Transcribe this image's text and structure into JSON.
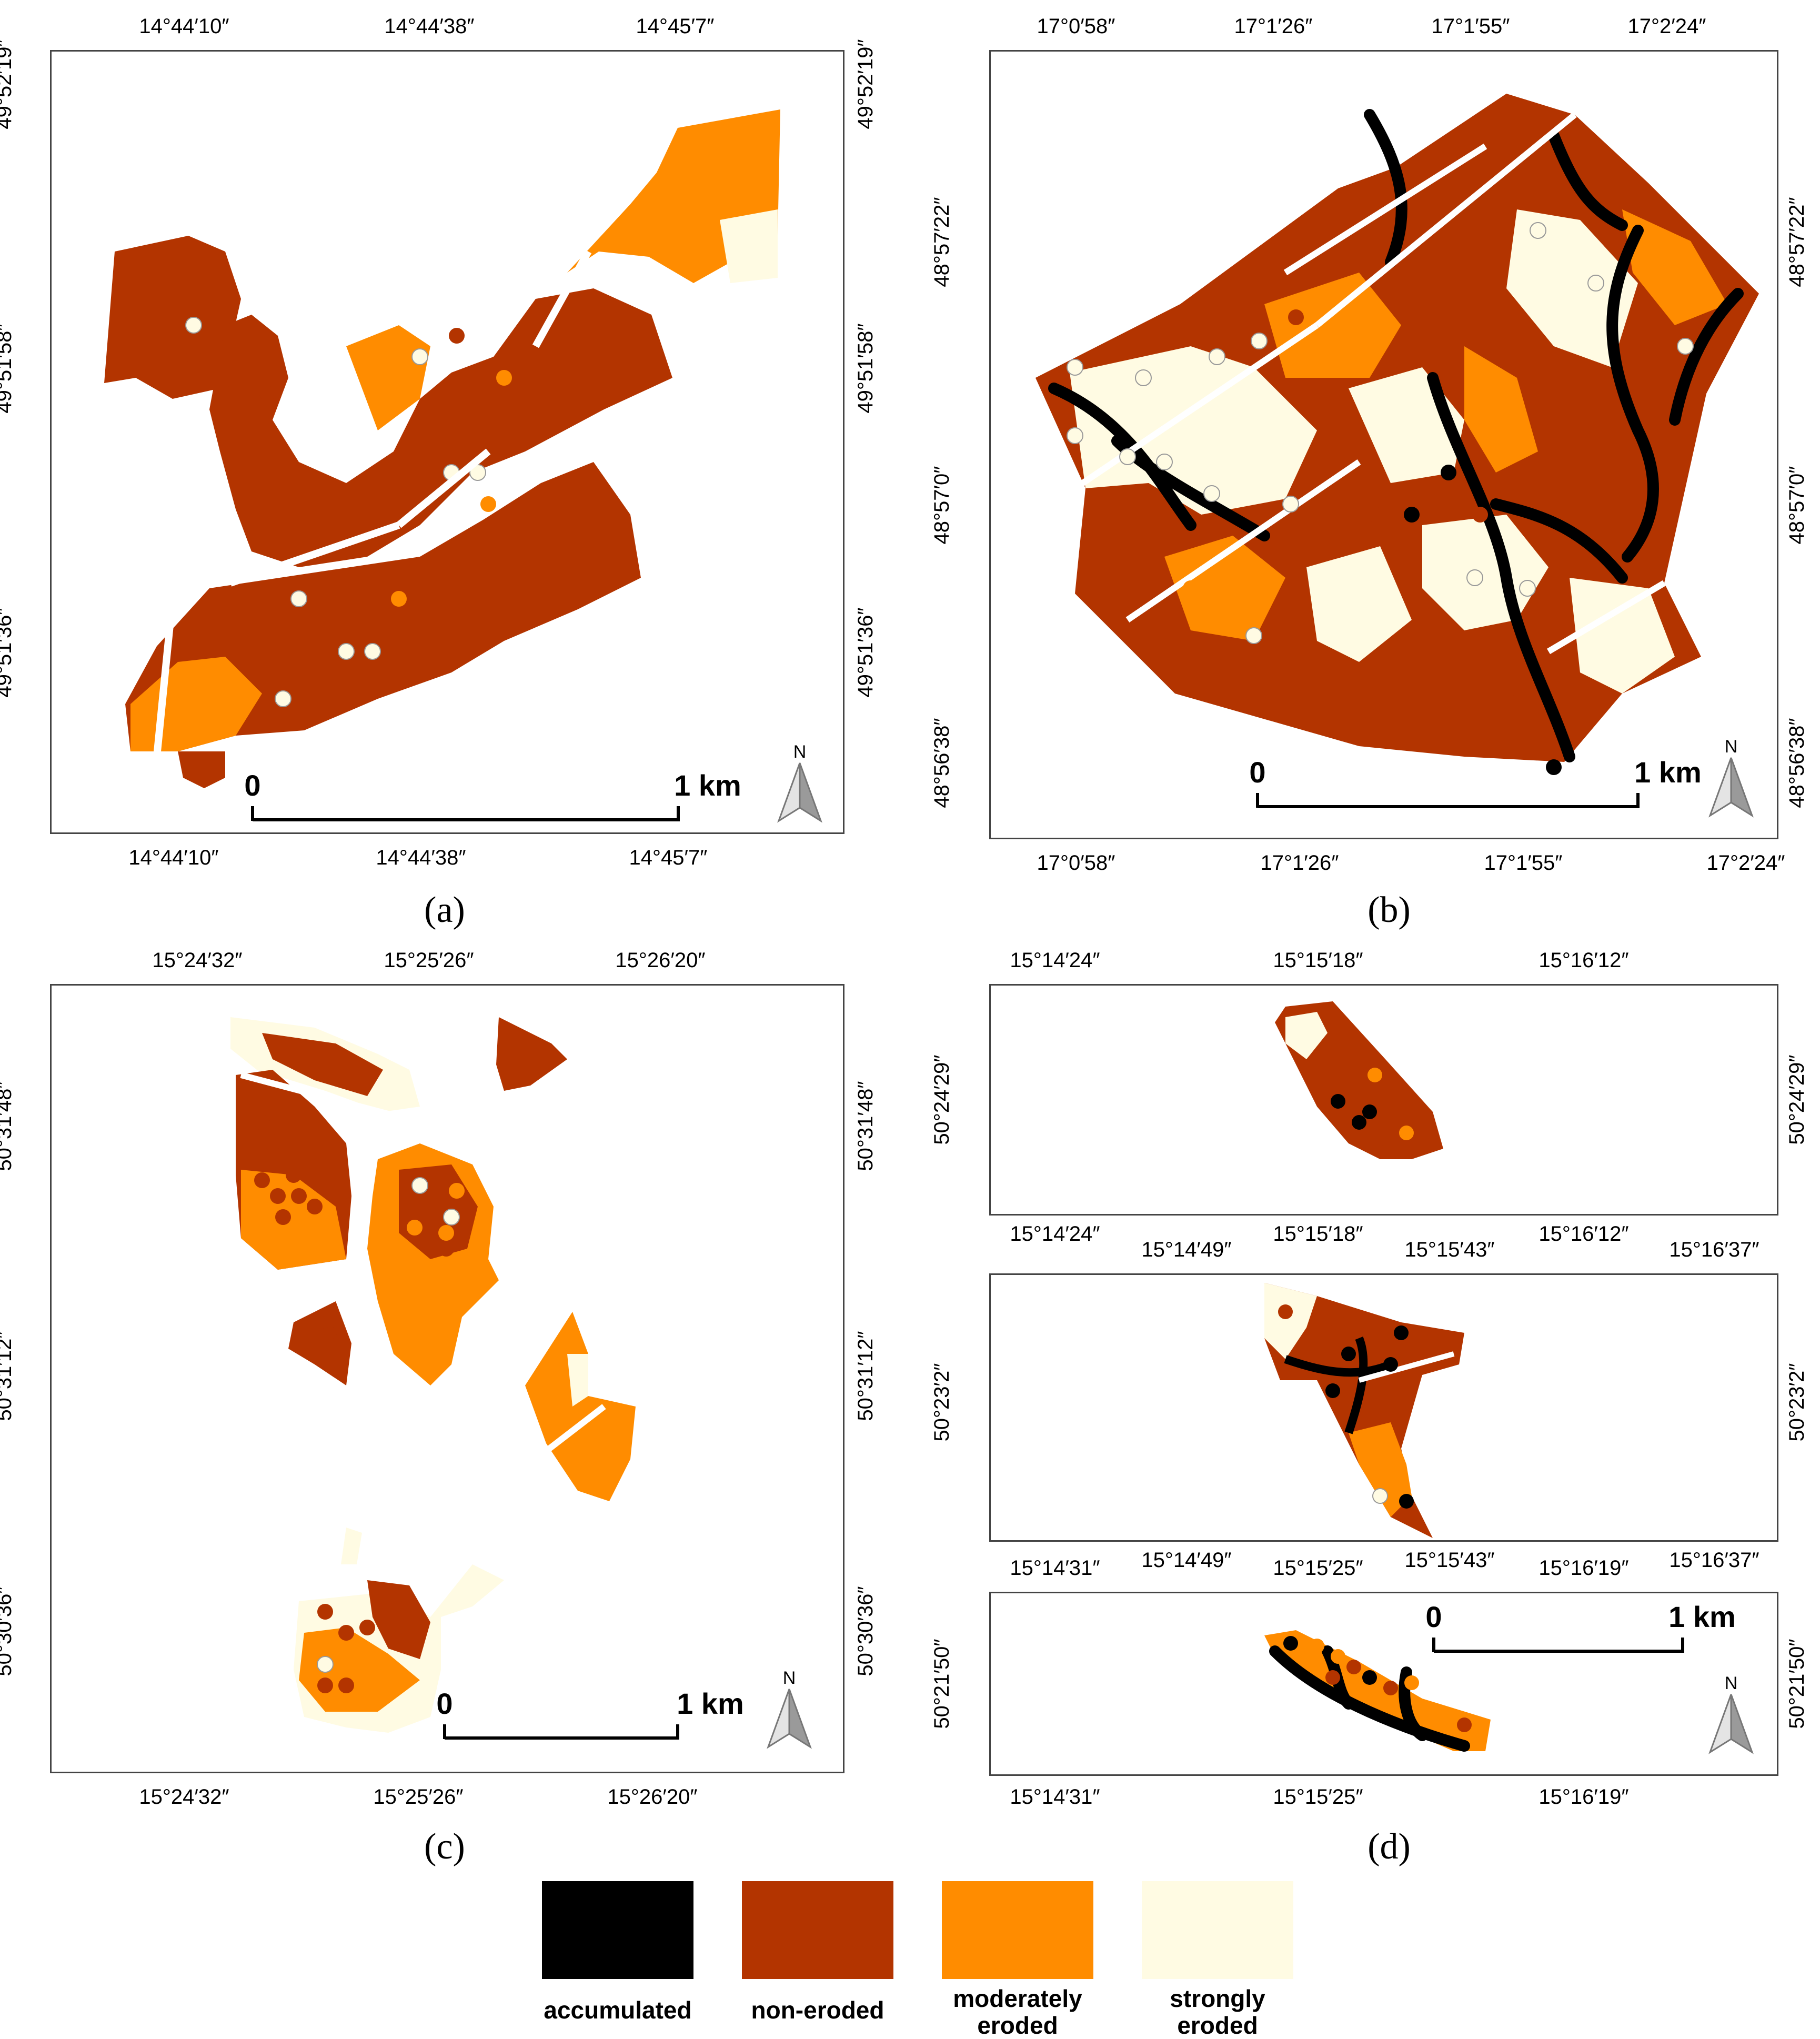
{
  "colors": {
    "accumulated": "#000000",
    "non_eroded": "#b33400",
    "moderately_eroded": "#ff8c00",
    "strongly_eroded": "#fffbe3"
  },
  "panels": {
    "a": {
      "label": "(a)",
      "top_ticks": [
        "14°44′10″",
        "14°44′38″",
        "14°45′7″"
      ],
      "bottom_ticks": [
        "14°44′10″",
        "14°44′38″",
        "14°45′7″"
      ],
      "left_ticks": [
        "49°52′19″",
        "49°51′58″",
        "49°51′36″"
      ],
      "right_ticks": [
        "49°52′19″",
        "49°51′58″",
        "49°51′36″"
      ],
      "scale": {
        "start": "0",
        "end": "1 km"
      },
      "north": "N"
    },
    "b": {
      "label": "(b)",
      "top_ticks": [
        "17°0′58″",
        "17°1′26″",
        "17°1′55″",
        "17°2′24″"
      ],
      "bottom_ticks": [
        "17°0′58″",
        "17°1′26″",
        "17°1′55″",
        "17°2′24″"
      ],
      "left_ticks": [
        "48°57′22″",
        "48°57′0″",
        "48°56′38″"
      ],
      "right_ticks": [
        "48°57′22″",
        "48°57′0″",
        "48°56′38″"
      ],
      "scale": {
        "start": "0",
        "end": "1 km"
      },
      "north": "N"
    },
    "c": {
      "label": "(c)",
      "top_ticks": [
        "15°24′32″",
        "15°25′26″",
        "15°26′20″"
      ],
      "bottom_ticks": [
        "15°24′32″",
        "15°25′26″",
        "15°26′20″"
      ],
      "left_ticks": [
        "50°31′48″",
        "50°31′12″",
        "50°30′36″"
      ],
      "right_ticks": [
        "50°31′48″",
        "50°31′12″",
        "50°30′36″"
      ],
      "scale": {
        "start": "0",
        "end": "1 km"
      },
      "north": "N"
    },
    "d": {
      "label": "(d)",
      "sub1": {
        "top_ticks": [
          "15°14′24″",
          "15°15′18″",
          "15°16′12″"
        ],
        "bottom_ticks": [
          "15°14′24″",
          "15°15′18″",
          "15°16′12″"
        ],
        "left_ticks": [
          "50°24′29″"
        ],
        "right_ticks": [
          "50°24′29″"
        ]
      },
      "sub2": {
        "top_ticks": [
          "15°14′49″",
          "15°15′43″",
          "15°16′37″"
        ],
        "bottom_ticks": [
          "15°14′49″",
          "15°15′43″",
          "15°16′37″"
        ],
        "left_ticks": [
          "50°23′2″"
        ],
        "right_ticks": [
          "50°23′2″"
        ]
      },
      "sub3": {
        "top_ticks": [
          "15°14′31″",
          "15°15′25″",
          "15°16′19″"
        ],
        "bottom_ticks": [
          "15°14′31″",
          "15°15′25″",
          "15°16′19″"
        ],
        "left_ticks": [
          "50°21′50″"
        ],
        "right_ticks": [
          "50°21′50″"
        ]
      },
      "scale": {
        "start": "0",
        "end": "1 km"
      },
      "north": "N"
    }
  },
  "legend": [
    {
      "key": "accumulated",
      "label": "accumulated"
    },
    {
      "key": "non_eroded",
      "label": "non-eroded"
    },
    {
      "key": "moderately_eroded",
      "label": "moderately eroded"
    },
    {
      "key": "strongly_eroded",
      "label": "strongly eroded"
    }
  ]
}
